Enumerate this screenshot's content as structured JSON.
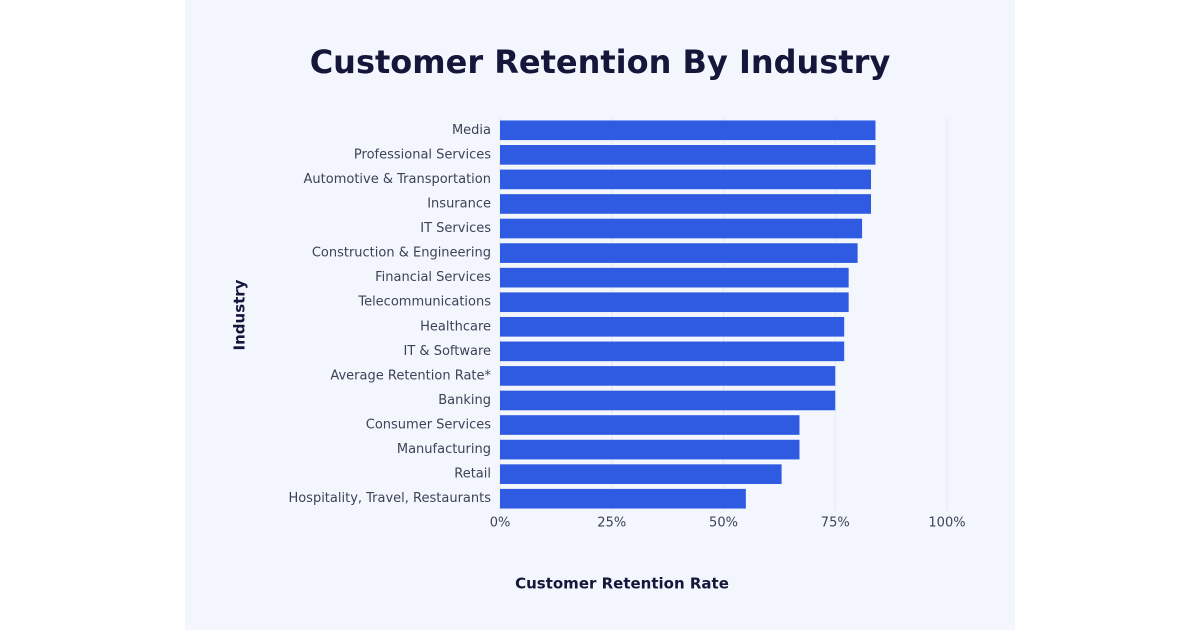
{
  "chart_data": {
    "type": "bar",
    "orientation": "horizontal",
    "title": "Customer Retention By Industry",
    "x_label": "Customer Retention Rate",
    "y_label": "Industry",
    "categories": [
      "Media",
      "Professional Services",
      "Automotive & Transportation",
      "Insurance",
      "IT Services",
      "Construction & Engineering",
      "Financial Services",
      "Telecommunications",
      "Healthcare",
      "IT & Software",
      "Average Retention Rate*",
      "Banking",
      "Consumer Services",
      "Manufacturing",
      "Retail",
      "Hospitality, Travel, Restaurants"
    ],
    "values": [
      84,
      84,
      83,
      83,
      81,
      80,
      78,
      78,
      77,
      77,
      75,
      75,
      67,
      67,
      63,
      55
    ],
    "color": "#2f5be3",
    "xlim": [
      0,
      100
    ],
    "xticks": [
      {
        "value": 0,
        "label": "0%"
      },
      {
        "value": 25,
        "label": "25%"
      },
      {
        "value": 50,
        "label": "50%"
      },
      {
        "value": 75,
        "label": "75%"
      },
      {
        "value": 100,
        "label": "100%"
      }
    ],
    "grid": true
  }
}
